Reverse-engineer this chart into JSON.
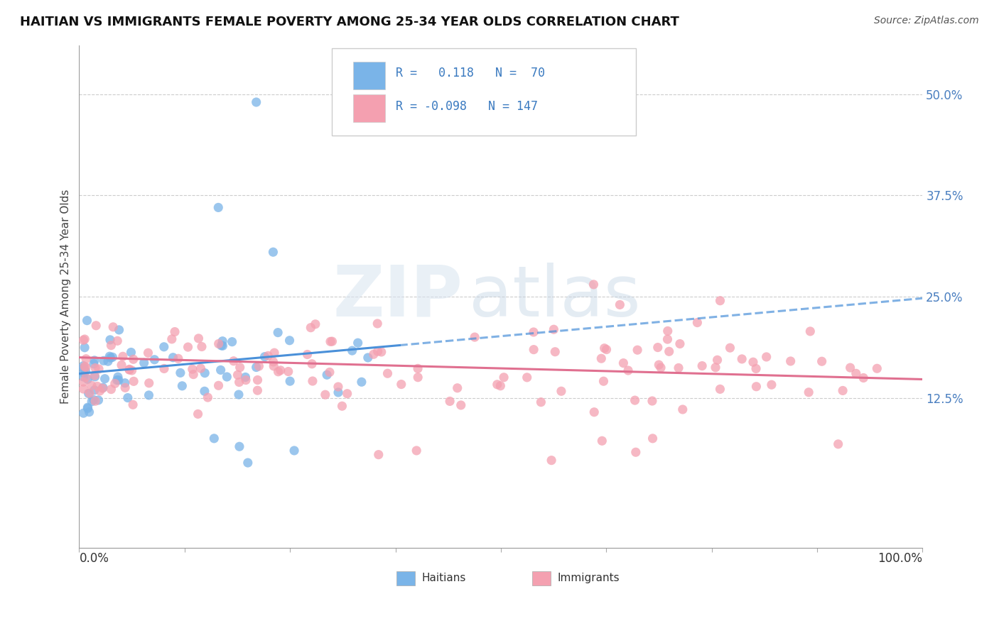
{
  "title": "HAITIAN VS IMMIGRANTS FEMALE POVERTY AMONG 25-34 YEAR OLDS CORRELATION CHART",
  "source": "Source: ZipAtlas.com",
  "ylabel": "Female Poverty Among 25-34 Year Olds",
  "xlim": [
    0.0,
    1.0
  ],
  "ylim": [
    -0.06,
    0.56
  ],
  "r_haitian": 0.118,
  "n_haitian": 70,
  "r_immigrant": -0.098,
  "n_immigrant": 147,
  "color_haitian": "#7ab4e8",
  "color_immigrant": "#f4a0b0",
  "trendline_haitian": "#4a90d9",
  "trendline_immigrant": "#e07090",
  "background_color": "#ffffff",
  "ytick_vals": [
    0.125,
    0.25,
    0.375,
    0.5
  ],
  "ytick_labels": [
    "12.5%",
    "25.0%",
    "37.5%",
    "50.0%"
  ]
}
